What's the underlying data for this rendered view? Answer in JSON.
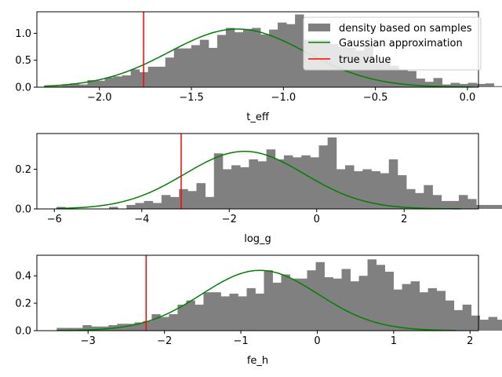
{
  "colors": {
    "histogram": "#808080",
    "gaussian": "#008000",
    "true_value": "#ff0000",
    "axes": "#000000",
    "background": "#ffffff"
  },
  "legend": {
    "location": "top-right",
    "entries": [
      {
        "label": "density based on samples",
        "style": "patch",
        "color": "#808080"
      },
      {
        "label": "Gaussian approximation",
        "style": "line",
        "color": "#008000"
      },
      {
        "label": "true value",
        "style": "line",
        "color": "#ff0000"
      }
    ]
  },
  "chart_data": [
    {
      "type": "bar",
      "xlabel": "t_eff",
      "xlim": [
        -2.34,
        0.06
      ],
      "ylim": [
        0,
        1.4
      ],
      "xticks": [
        -2.0,
        -1.5,
        -1.0,
        -0.5,
        0.0
      ],
      "xtick_labels": [
        "−2.0",
        "−1.5",
        "−1.0",
        "−0.5",
        "0.0"
      ],
      "yticks": [
        0.0,
        0.5,
        1.0
      ],
      "ytick_labels": [
        "0.0",
        "0.5",
        "1.0"
      ],
      "grid": false,
      "histogram": {
        "name": "density based on samples",
        "bin_start": -2.3,
        "bin_width": 0.047,
        "heights": [
          0.03,
          0.02,
          0.04,
          0.07,
          0.05,
          0.13,
          0.12,
          0.18,
          0.2,
          0.22,
          0.33,
          0.28,
          0.38,
          0.38,
          0.55,
          0.72,
          0.72,
          0.78,
          0.88,
          0.73,
          0.97,
          1.1,
          1.02,
          1.08,
          1.1,
          0.98,
          1.07,
          1.2,
          1.17,
          1.35,
          0.88,
          0.88,
          0.88,
          0.8,
          0.75,
          0.73,
          0.68,
          0.8,
          0.45,
          0.48,
          0.4,
          0.32,
          0.3,
          0.16,
          0.1,
          0.17,
          0.05,
          0.08,
          0.06,
          0.08,
          0.06,
          0.07,
          0.02,
          0.02
        ]
      },
      "gaussian": {
        "name": "Gaussian approximation",
        "mean": -1.25,
        "std": 0.37,
        "amplitude": 1.08,
        "x_range": [
          -2.3,
          0.03
        ]
      },
      "true_value": {
        "name": "true value",
        "x": -1.76
      }
    },
    {
      "type": "bar",
      "xlabel": "log_g",
      "xlim": [
        -6.4,
        3.7
      ],
      "ylim": [
        0,
        0.38
      ],
      "xticks": [
        -6,
        -4,
        -2,
        0,
        2
      ],
      "xtick_labels": [
        "−6",
        "−4",
        "−2",
        "0",
        "2"
      ],
      "yticks": [
        0.0,
        0.2
      ],
      "ytick_labels": [
        "0.0",
        "0.2"
      ],
      "grid": false,
      "histogram": {
        "name": "density based on samples",
        "bin_start": -5.95,
        "bin_width": 0.2,
        "heights": [
          0.01,
          0,
          0,
          0,
          0,
          0,
          0.01,
          0,
          0.02,
          0.03,
          0.04,
          0.03,
          0.07,
          0.06,
          0.1,
          0.09,
          0.13,
          0.06,
          0.28,
          0.2,
          0.22,
          0.21,
          0.25,
          0.24,
          0.3,
          0.25,
          0.27,
          0.26,
          0.27,
          0.26,
          0.32,
          0.36,
          0.2,
          0.22,
          0.19,
          0.2,
          0.19,
          0.18,
          0.25,
          0.17,
          0.1,
          0.08,
          0.12,
          0.07,
          0.04,
          0.04,
          0.07,
          0.05,
          0.02,
          0.02,
          0.02,
          0.01,
          0.01,
          0,
          0,
          0,
          0,
          0.01
        ]
      },
      "gaussian": {
        "name": "Gaussian approximation",
        "mean": -1.65,
        "std": 1.37,
        "amplitude": 0.29,
        "x_range": [
          -5.95,
          3.3
        ]
      },
      "true_value": {
        "name": "true value",
        "x": -3.1
      }
    },
    {
      "type": "bar",
      "xlabel": "fe_h",
      "xlim": [
        -3.67,
        2.11
      ],
      "ylim": [
        0,
        0.55
      ],
      "xticks": [
        -3,
        -2,
        -1,
        0,
        1,
        2
      ],
      "xtick_labels": [
        "−3",
        "−2",
        "−1",
        "0",
        "1",
        "2"
      ],
      "yticks": [
        0.0,
        0.2,
        0.4
      ],
      "ytick_labels": [
        "0.0",
        "0.2",
        "0.4"
      ],
      "grid": false,
      "histogram": {
        "name": "density based on samples",
        "bin_start": -3.41,
        "bin_width": 0.113,
        "heights": [
          0.02,
          0.02,
          0.02,
          0.04,
          0.03,
          0.03,
          0.04,
          0.05,
          0.05,
          0.06,
          0.07,
          0.12,
          0.1,
          0.12,
          0.19,
          0.22,
          0.19,
          0.28,
          0.28,
          0.25,
          0.27,
          0.25,
          0.31,
          0.27,
          0.44,
          0.35,
          0.41,
          0.38,
          0.38,
          0.44,
          0.5,
          0.39,
          0.38,
          0.45,
          0.36,
          0.4,
          0.52,
          0.48,
          0.43,
          0.3,
          0.34,
          0.36,
          0.28,
          0.31,
          0.29,
          0.22,
          0.15,
          0.19,
          0.11,
          0.08,
          0.1,
          0.08,
          0.07,
          0.08,
          0.06,
          0.05,
          0.04,
          0.03,
          0.01,
          0.02,
          0.01,
          0.01
        ]
      },
      "gaussian": {
        "name": "Gaussian approximation",
        "mean": -0.75,
        "std": 0.76,
        "amplitude": 0.44,
        "x_range": [
          -3.41,
          1.82
        ]
      },
      "true_value": {
        "name": "true value",
        "x": -2.24
      }
    }
  ]
}
